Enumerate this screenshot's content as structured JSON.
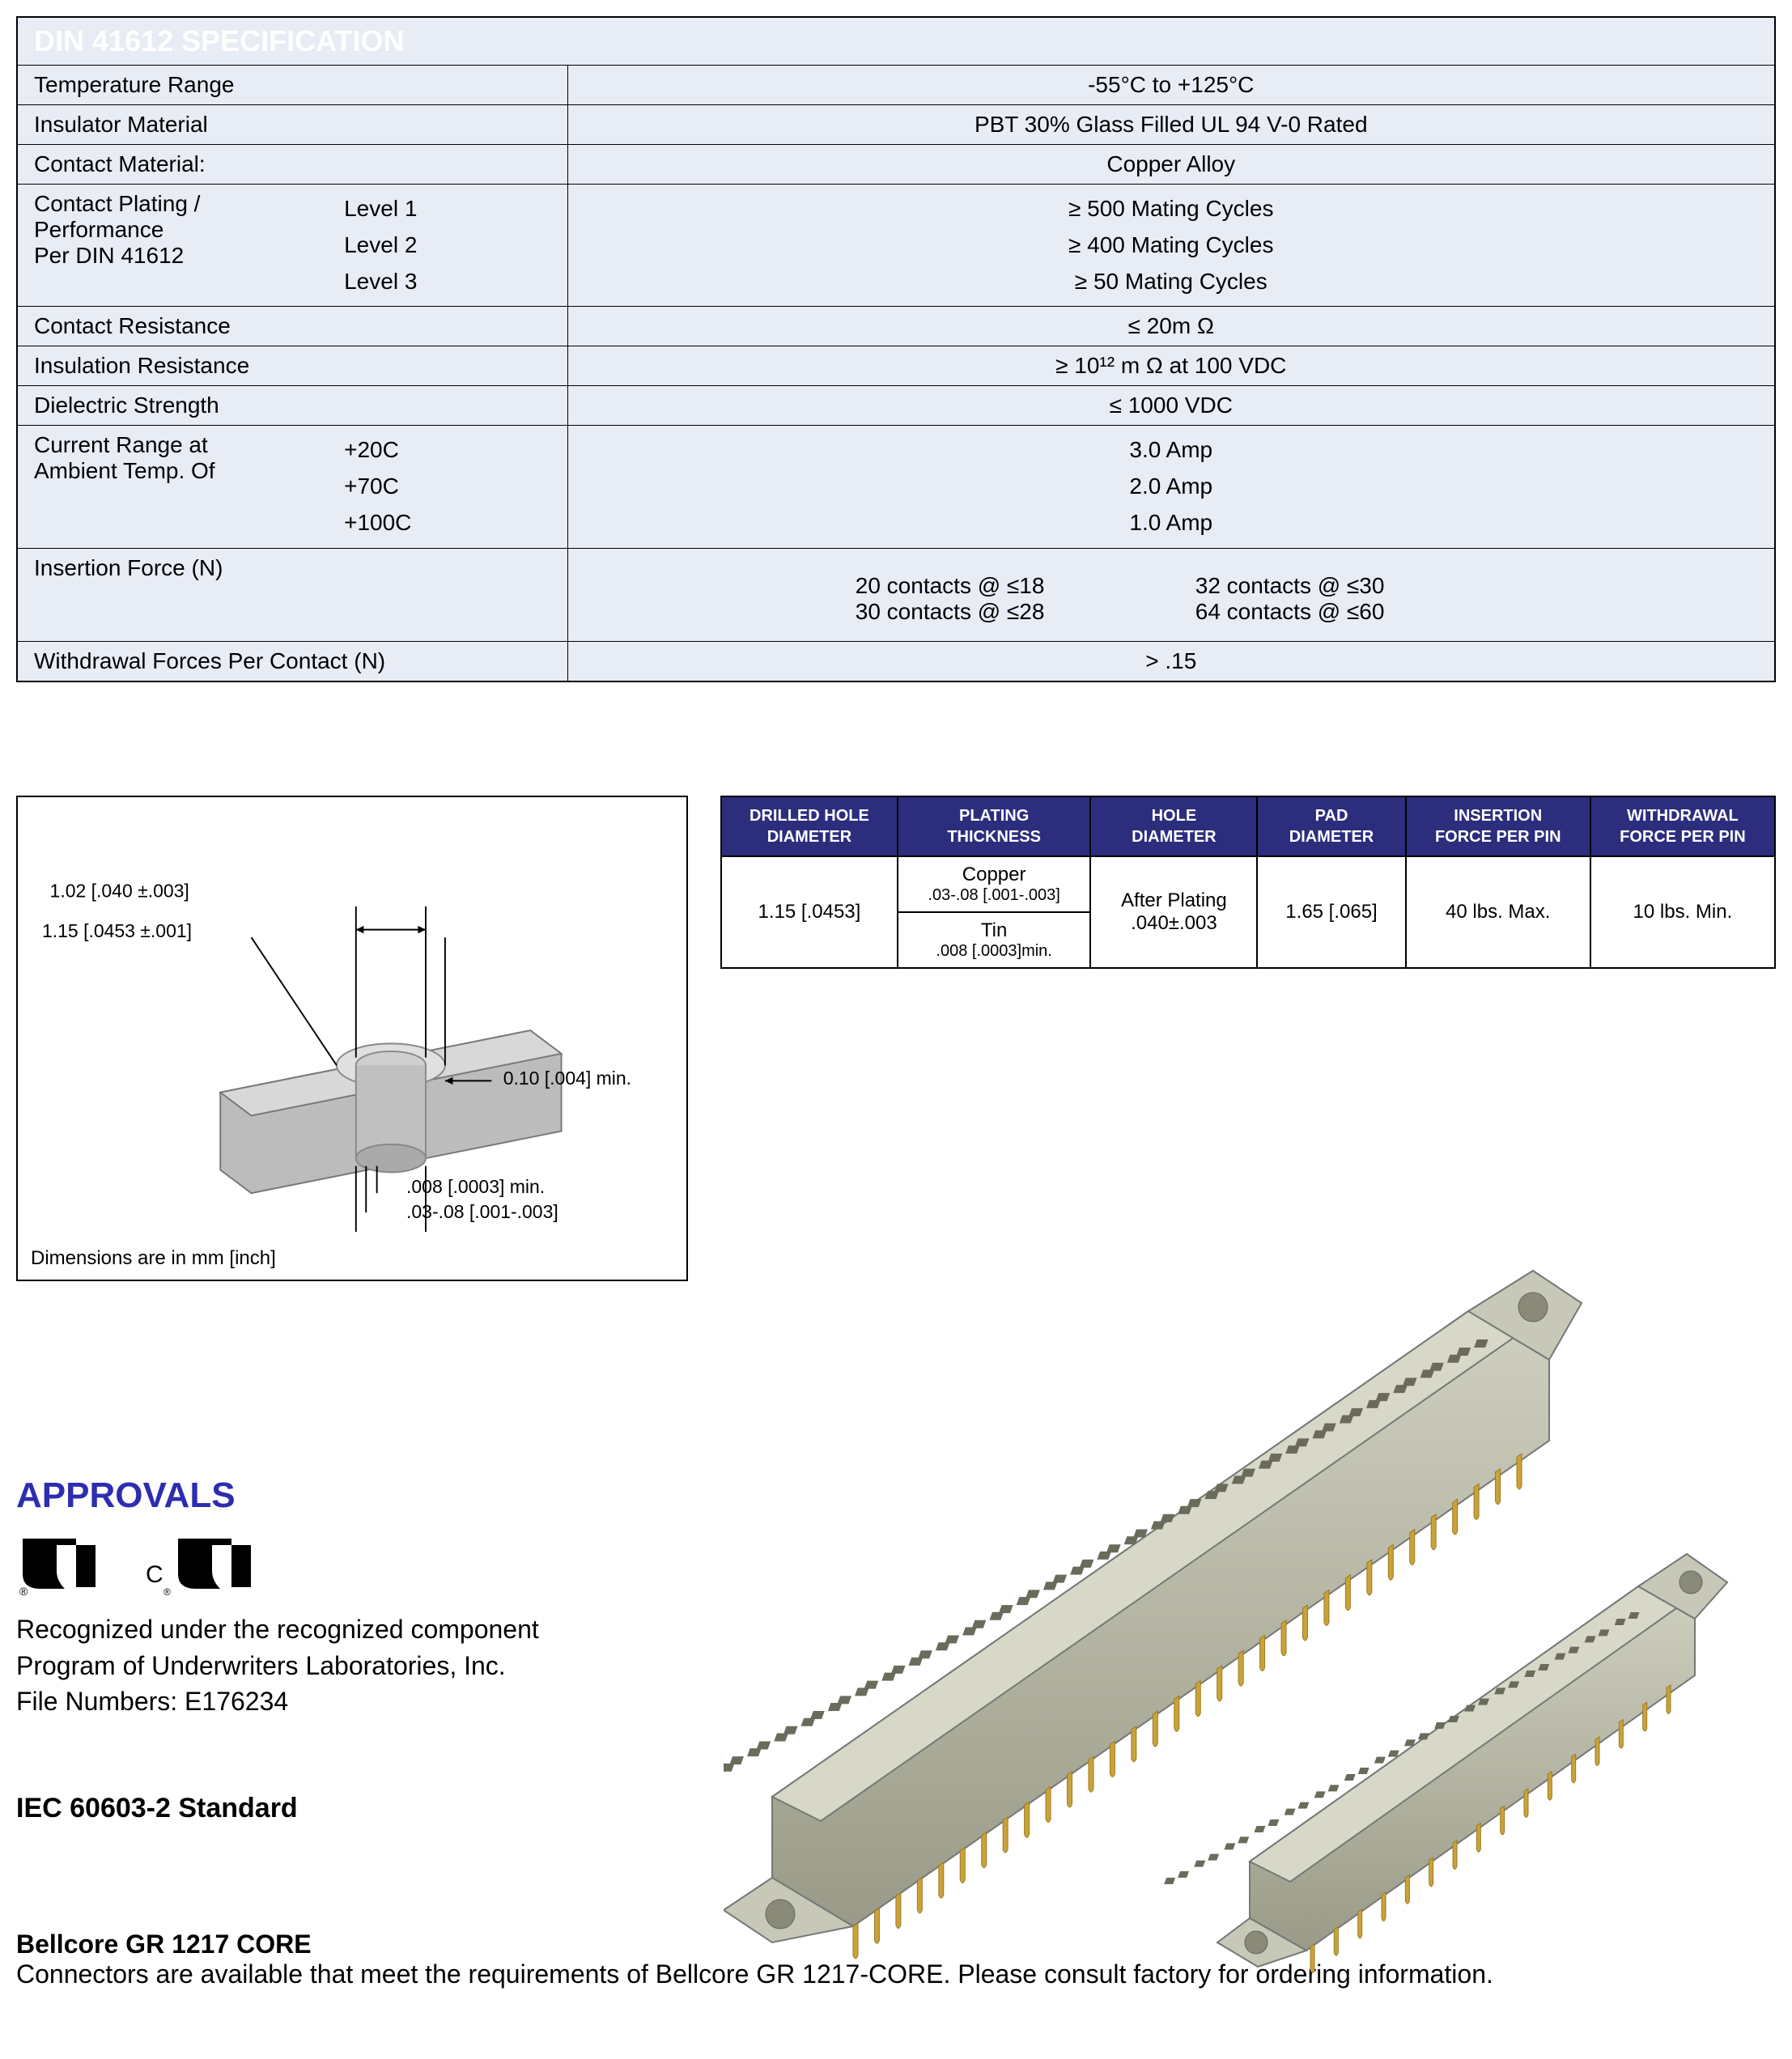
{
  "spec": {
    "title": "DIN 41612 SPECIFICATION",
    "bg_header": "#2c2d7c",
    "bg_cell": "#e8ecf5",
    "rows": {
      "tempRange": {
        "label": "Temperature Range",
        "value": "-55°C to +125°C"
      },
      "insulator": {
        "label": "Insulator Material",
        "value": "PBT 30% Glass Filled UL 94 V-0 Rated"
      },
      "contactMat": {
        "label": "Contact Material:",
        "value": "Copper Alloy"
      },
      "plating": {
        "label1": "Contact Plating /",
        "label2": "Performance",
        "label3": "Per DIN 41612",
        "lvl1": "Level 1",
        "lvl2": "Level 2",
        "lvl3": "Level 3",
        "val1": "≥ 500 Mating Cycles",
        "val2": "≥ 400 Mating Cycles",
        "val3": "≥  50 Mating Cycles"
      },
      "contactRes": {
        "label": "Contact Resistance",
        "value": "≤  20m Ω"
      },
      "insulRes": {
        "label": "Insulation Resistance",
        "value_html": "≥ 10¹² m Ω at 100 VDC"
      },
      "dielectric": {
        "label": "Dielectric Strength",
        "value": "≤ 1000 VDC"
      },
      "current": {
        "label1": "Current Range at",
        "label2": "Ambient Temp. Of",
        "t1": "+20C",
        "t2": "+70C",
        "t3": "+100C",
        "v1": "3.0 Amp",
        "v2": "2.0 Amp",
        "v3": "1.0 Amp"
      },
      "insertion": {
        "label": " Insertion Force (N)",
        "c1": "20 contacts @ ≤18",
        "c2": "30 contacts @ ≤28",
        "c3": "32 contacts @ ≤30",
        "c4": "64 contacts @ ≤60"
      },
      "withdrawal": {
        "label": "Withdrawal Forces Per Contact (N)",
        "value": "> .15"
      }
    }
  },
  "diagram": {
    "caption": "Dimensions are in mm [inch]",
    "d1": "1.02 [.040 ±.003]",
    "d2": "1.15 [.0453 ±.001]",
    "d3": "0.10 [.004] min.",
    "d4": ".008 [.0003] min.",
    "d5": ".03-.08 [.001-.003]"
  },
  "dimTable": {
    "headers": {
      "h1a": "DRILLED HOLE",
      "h1b": "DIAMETER",
      "h2a": "PLATING",
      "h2b": "THICKNESS",
      "h3a": "HOLE",
      "h3b": "DIAMETER",
      "h4a": "PAD",
      "h4b": "DIAMETER",
      "h5a": "INSERTION",
      "h5b": "FORCE PER PIN",
      "h6a": "WITHDRAWAL",
      "h6b": "FORCE PER PIN"
    },
    "row": {
      "drilled": "1.15 [.0453]",
      "copper_l": "Copper",
      "copper_v": ".03-.08 [.001-.003]",
      "tin_l": "Tin",
      "tin_v": ".008 [.0003]min.",
      "after": "After Plating",
      "after_v": ".040±.003",
      "pad": "1.65 [.065]",
      "ins": "40 lbs. Max.",
      "wd": "10 lbs. Min."
    }
  },
  "approvals": {
    "title": "APPROVALS",
    "text1": "Recognized under the recognized component",
    "text2": "Program of Underwriters Laboratories, Inc.",
    "text3": "File Numbers: E176234",
    "iec": "IEC 60603-2 Standard",
    "bellcoreTitle": "Bellcore GR 1217 CORE",
    "bellcoreText": "Connectors are available that meet the requirements of Bellcore GR 1217-CORE.  Please consult factory for ordering information."
  },
  "connector": {
    "body_color": "#b5b5a2",
    "body_light": "#d0d0c0",
    "body_dark": "#8a8a78",
    "pin_color": "#c9a33a",
    "pin_dark": "#9c7a20"
  }
}
